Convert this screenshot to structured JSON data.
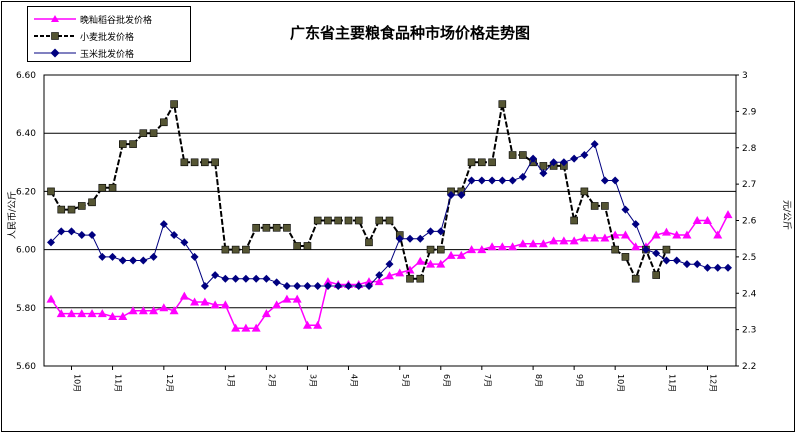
{
  "chart_data": {
    "type": "line",
    "title": "广东省主要粮食品种市场价格走势图",
    "ylabel_left": "人民币/公斤",
    "ylabel_right": "元/公斤",
    "ylim_left": [
      5.6,
      6.6
    ],
    "ylim_right": [
      2.2,
      3.0
    ],
    "yticks_left": [
      "5.60",
      "5.80",
      "6.00",
      "6.20",
      "6.40",
      "6.60"
    ],
    "yticks_right": [
      "2.2",
      "2.3",
      "2.4",
      "2.5",
      "2.6",
      "2.7",
      "2.8",
      "2.9",
      "3"
    ],
    "x_month_labels": [
      {
        "index": 2,
        "label": "10月"
      },
      {
        "index": 6,
        "label": "11月"
      },
      {
        "index": 11,
        "label": "12月"
      },
      {
        "index": 17,
        "label": "1月"
      },
      {
        "index": 21,
        "label": "2月"
      },
      {
        "index": 25,
        "label": "3月"
      },
      {
        "index": 29,
        "label": "4月"
      },
      {
        "index": 34,
        "label": "5月"
      },
      {
        "index": 38,
        "label": "6月"
      },
      {
        "index": 42,
        "label": "7月"
      },
      {
        "index": 47,
        "label": "8月"
      },
      {
        "index": 51,
        "label": "9月"
      },
      {
        "index": 55,
        "label": "10月"
      },
      {
        "index": 60,
        "label": "11月"
      },
      {
        "index": 64,
        "label": "12月"
      }
    ],
    "grid": true,
    "legend_position": "top-left",
    "series": [
      {
        "name": "晚籼稻谷批发价格",
        "axis": "left",
        "color": "#ff00ff",
        "marker": "triangle",
        "values": [
          5.83,
          5.78,
          5.78,
          5.78,
          5.78,
          5.78,
          5.77,
          5.77,
          5.79,
          5.79,
          5.79,
          5.8,
          5.79,
          5.84,
          5.82,
          5.82,
          5.81,
          5.81,
          5.73,
          5.73,
          5.73,
          5.78,
          5.81,
          5.83,
          5.83,
          5.74,
          5.74,
          5.89,
          5.88,
          5.88,
          5.88,
          5.89,
          5.89,
          5.91,
          5.92,
          5.93,
          5.96,
          5.95,
          5.95,
          5.98,
          5.98,
          6.0,
          6.0,
          6.01,
          6.01,
          6.01,
          6.02,
          6.02,
          6.02,
          6.03,
          6.03,
          6.03,
          6.04,
          6.04,
          6.04,
          6.05,
          6.05,
          6.01,
          6.01,
          6.05,
          6.06,
          6.05,
          6.05,
          6.1,
          6.1,
          6.05,
          6.12
        ]
      },
      {
        "name": "小麦批发价格",
        "axis": "right",
        "color": "#000000",
        "marker": "square",
        "values": [
          2.68,
          2.63,
          2.63,
          2.64,
          2.65,
          2.69,
          2.69,
          2.81,
          2.81,
          2.84,
          2.84,
          2.87,
          2.92,
          2.76,
          2.76,
          2.76,
          2.76,
          2.52,
          2.52,
          2.52,
          2.58,
          2.58,
          2.58,
          2.58,
          2.53,
          2.53,
          2.6,
          2.6,
          2.6,
          2.6,
          2.6,
          2.54,
          2.6,
          2.6,
          2.56,
          2.44,
          2.44,
          2.52,
          2.52,
          2.68,
          2.68,
          2.76,
          2.76,
          2.76,
          2.92,
          2.78,
          2.78,
          2.76,
          2.75,
          2.75,
          2.75,
          2.6,
          2.68,
          2.64,
          2.64,
          2.52,
          2.5,
          2.44,
          2.52,
          2.45,
          2.52
        ]
      },
      {
        "name": "玉米批发价格",
        "axis": "right",
        "color": "#000080",
        "marker": "diamond",
        "values": [
          2.54,
          2.57,
          2.57,
          2.56,
          2.56,
          2.5,
          2.5,
          2.49,
          2.49,
          2.49,
          2.5,
          2.59,
          2.56,
          2.54,
          2.5,
          2.42,
          2.45,
          2.44,
          2.44,
          2.44,
          2.44,
          2.44,
          2.43,
          2.42,
          2.42,
          2.42,
          2.42,
          2.42,
          2.42,
          2.42,
          2.42,
          2.42,
          2.45,
          2.48,
          2.55,
          2.55,
          2.55,
          2.57,
          2.57,
          2.67,
          2.67,
          2.71,
          2.71,
          2.71,
          2.71,
          2.71,
          2.72,
          2.77,
          2.73,
          2.76,
          2.76,
          2.77,
          2.78,
          2.81,
          2.71,
          2.71,
          2.63,
          2.59,
          2.52,
          2.51,
          2.49,
          2.49,
          2.48,
          2.48,
          2.47,
          2.47,
          2.47
        ]
      }
    ]
  }
}
